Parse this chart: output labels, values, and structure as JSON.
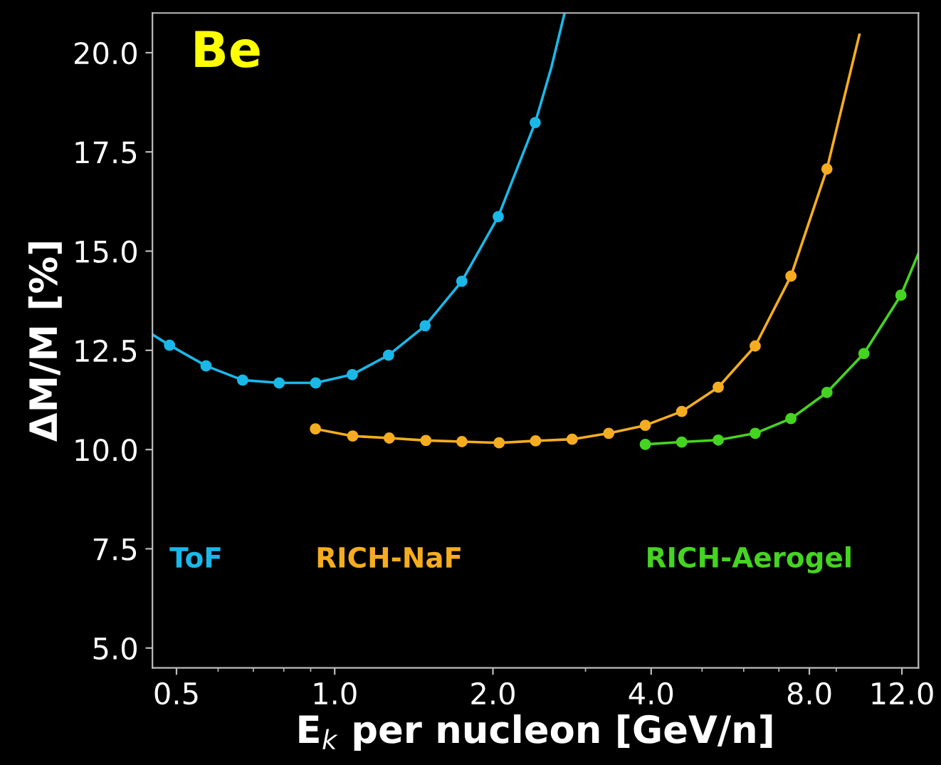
{
  "chart_data": {
    "type": "line",
    "title": "Be",
    "xlabel": "E$_{k}$ per nucleon [GeV/n]",
    "ylabel": "ΔM/M [%]",
    "log": "x",
    "xlim": [
      0.45,
      12.9
    ],
    "ylim": [
      4.5,
      21.0
    ],
    "xticks": [
      {
        "value": 0.5,
        "label": "0.5"
      },
      {
        "value": 1,
        "label": "1.0"
      },
      {
        "value": 2,
        "label": "2.0"
      },
      {
        "value": 4,
        "label": "4.0"
      },
      {
        "value": 8,
        "label": "8.0"
      },
      {
        "value": 12,
        "label": "12.0"
      }
    ],
    "yticks": [
      {
        "value": 5,
        "label": "5.0"
      },
      7.5,
      {
        "value": 10,
        "label": "10.0"
      },
      12.5,
      {
        "value": 15,
        "label": "15.0"
      },
      17.5,
      {
        "value": 20,
        "label": "20.0"
      }
    ],
    "grid": false,
    "legend": false,
    "series": [
      {
        "color": "#1ab8e8",
        "x": [
          0.451,
          0.485,
          0.569,
          0.668,
          0.784,
          0.92,
          1.08,
          1.266,
          1.486,
          1.745,
          2.047,
          2.407,
          2.585,
          2.738
        ],
        "values": [
          12.89,
          12.63,
          12.11,
          11.75,
          11.68,
          11.68,
          11.89,
          12.38,
          13.12,
          14.24,
          15.87,
          18.24,
          19.64,
          21.0
        ]
      },
      {
        "type": "scatter",
        "name": "ToF",
        "color": "#1ab8e8",
        "x": [
          0.485,
          0.569,
          0.668,
          0.784,
          0.92,
          1.08,
          1.266,
          1.486,
          1.745,
          2.047,
          2.407
        ],
        "values": [
          12.63,
          12.11,
          11.75,
          11.68,
          11.68,
          11.89,
          12.38,
          13.12,
          14.24,
          15.87,
          18.24
        ]
      },
      {
        "color": "#f5ad1f",
        "x": [
          0.919,
          1.082,
          1.27,
          1.491,
          1.746,
          2.055,
          2.411,
          2.83,
          3.322,
          3.899,
          4.574,
          5.367,
          6.31,
          7.38,
          8.64,
          9.96
        ],
        "values": [
          10.52,
          10.34,
          10.29,
          10.23,
          10.2,
          10.17,
          10.22,
          10.26,
          10.41,
          10.61,
          10.96,
          11.57,
          12.61,
          14.37,
          17.07,
          20.45
        ]
      },
      {
        "type": "scatter",
        "name": "RICH-NaF",
        "color": "#f5ad1f",
        "x": [
          0.919,
          1.082,
          1.27,
          1.491,
          1.746,
          2.055,
          2.411,
          2.83,
          3.322,
          3.899,
          4.574,
          5.367,
          6.31,
          7.38,
          8.64
        ],
        "values": [
          10.52,
          10.34,
          10.29,
          10.23,
          10.2,
          10.17,
          10.22,
          10.26,
          10.41,
          10.61,
          10.96,
          11.57,
          12.61,
          14.37,
          17.07
        ]
      },
      {
        "color": "#45d421",
        "x": [
          3.899,
          4.574,
          5.367,
          6.31,
          7.38,
          8.64,
          10.16,
          11.95,
          12.9
        ],
        "values": [
          10.13,
          10.19,
          10.24,
          10.41,
          10.78,
          11.44,
          12.42,
          13.89,
          14.94
        ]
      },
      {
        "type": "scatter",
        "name": "RICH-Aerogel",
        "color": "#45d421",
        "x": [
          3.899,
          4.574,
          5.367,
          6.31,
          7.38,
          8.64,
          10.16,
          11.95
        ],
        "values": [
          10.13,
          10.19,
          10.24,
          10.41,
          10.78,
          11.44,
          12.42,
          13.89
        ]
      }
    ]
  }
}
